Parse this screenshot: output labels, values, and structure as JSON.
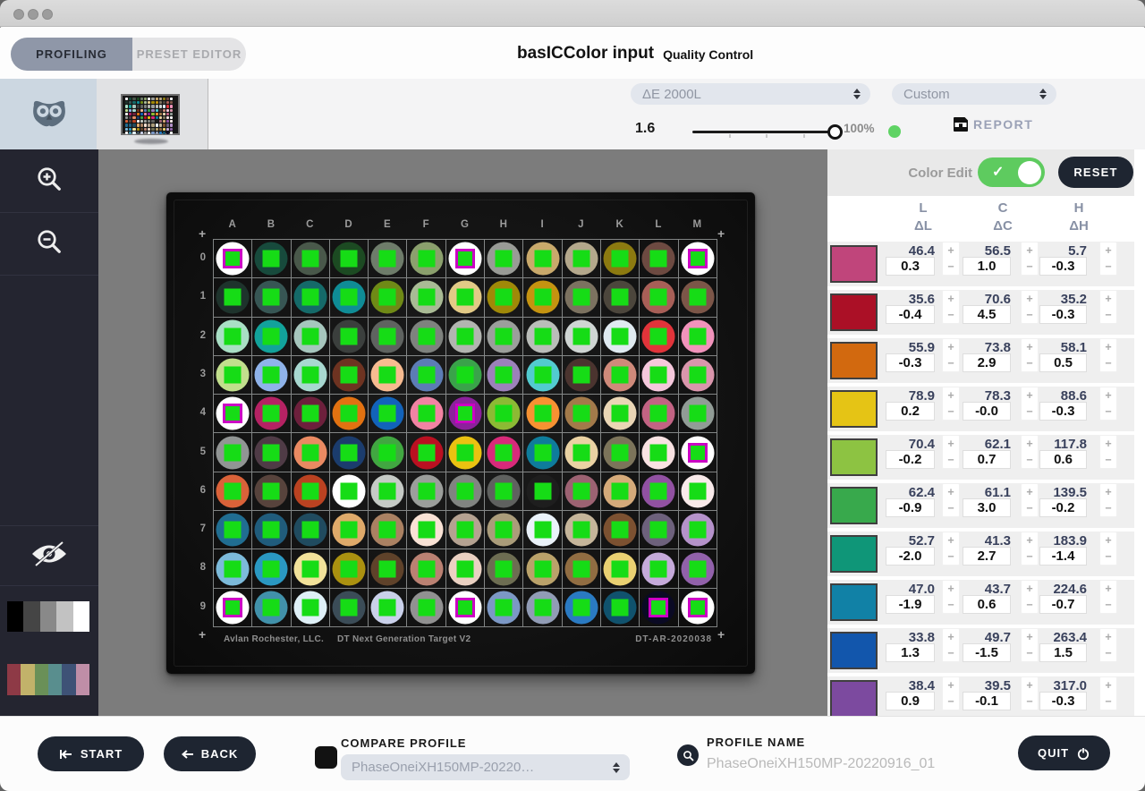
{
  "tabs": {
    "profiling": "PROFILING",
    "preset_editor": "PRESET EDITOR"
  },
  "header": {
    "title": "basICColor input",
    "subtitle": "Quality Control"
  },
  "controls": {
    "delta_e_dropdown": "ΔE 2000L",
    "preset_dropdown": "Custom",
    "tolerance_value": "1.6",
    "slider_percent": "100%",
    "report_label": "REPORT",
    "status_color": "#5fd364"
  },
  "color_edit": {
    "label": "Color Edit",
    "reset_label": "RESET",
    "toggle_on": true
  },
  "table": {
    "headers": [
      {
        "top": "L",
        "bottom": "ΔL"
      },
      {
        "top": "C",
        "bottom": "ΔC"
      },
      {
        "top": "H",
        "bottom": "ΔH"
      }
    ],
    "plus": "+",
    "minus": "−",
    "rows": [
      {
        "swatch": "#c0457b",
        "L": "46.4",
        "dL": "0.3",
        "C": "56.5",
        "dC": "1.0",
        "H": "5.7",
        "dH": "-0.3"
      },
      {
        "swatch": "#ab1026",
        "L": "35.6",
        "dL": "-0.4",
        "C": "70.6",
        "dC": "4.5",
        "H": "35.2",
        "dH": "-0.3"
      },
      {
        "swatch": "#d2690f",
        "L": "55.9",
        "dL": "-0.3",
        "C": "73.8",
        "dC": "2.9",
        "H": "58.1",
        "dH": "0.5"
      },
      {
        "swatch": "#e5c415",
        "L": "78.9",
        "dL": "0.2",
        "C": "78.3",
        "dC": "-0.0",
        "H": "88.6",
        "dH": "-0.3"
      },
      {
        "swatch": "#8dc342",
        "L": "70.4",
        "dL": "-0.2",
        "C": "62.1",
        "dC": "0.7",
        "H": "117.8",
        "dH": "0.6"
      },
      {
        "swatch": "#38a94c",
        "L": "62.4",
        "dL": "-0.9",
        "C": "61.1",
        "dC": "3.0",
        "H": "139.5",
        "dH": "-0.2"
      },
      {
        "swatch": "#0f9678",
        "L": "52.7",
        "dL": "-2.0",
        "C": "41.3",
        "dC": "2.7",
        "H": "183.9",
        "dH": "-1.4"
      },
      {
        "swatch": "#1181a6",
        "L": "47.0",
        "dL": "-1.9",
        "C": "43.7",
        "dC": "0.6",
        "H": "224.6",
        "dH": "-0.7"
      },
      {
        "swatch": "#1256ac",
        "L": "33.8",
        "dL": "1.3",
        "C": "49.7",
        "dC": "-1.5",
        "H": "263.4",
        "dH": "1.5"
      },
      {
        "swatch": "#7c4a9f",
        "L": "38.4",
        "dL": "0.9",
        "C": "39.5",
        "dC": "-0.1",
        "H": "317.0",
        "dH": "-0.3"
      }
    ]
  },
  "target": {
    "cols": [
      "A",
      "B",
      "C",
      "D",
      "E",
      "F",
      "G",
      "H",
      "I",
      "J",
      "K",
      "L",
      "M"
    ],
    "row_labels": [
      "0",
      "1",
      "2",
      "3",
      "4",
      "5",
      "6",
      "7",
      "8",
      "9"
    ],
    "footer_left": "Avlan Rochester, LLC.",
    "footer_mid": "DT Next Generation Target V2",
    "footer_right": "DT-AR-2020038",
    "square_color": "#16dc16",
    "outline_color": "#cb00c4",
    "cells": [
      [
        "#ffffff m",
        "#174a3c",
        "#49584a",
        "#1c4a22",
        "#6e7c6a",
        "#8ba06d",
        "#ffffff m",
        "#999b96",
        "#c9a96b",
        "#b4a88c",
        "#8c7a10",
        "#6d4a41",
        "#ffffff m"
      ],
      [
        "#1e332c",
        "#375654",
        "#156a69",
        "#0f8c96",
        "#6f8a16",
        "#a9bb95",
        "#e2ca86",
        "#a08908",
        "#c59310",
        "#7c7260",
        "#4c463c",
        "#a85f57",
        "#7c5648"
      ],
      [
        "#a9dfc5",
        "#12a29b",
        "#a6c6bd",
        "#3b3f3d",
        "#5f6360",
        "#7e827e",
        "#b2b5b0",
        "#9b9e9b",
        "#babdb9",
        "#cfd5d3",
        "#dfeaf0",
        "#e1343a",
        "#f193bb"
      ],
      [
        "#c2df8d",
        "#8fb3ea",
        "#a8d8d0",
        "#6e3321",
        "#f7bb90",
        "#5c7cb5",
        "#3aa34a",
        "#9c81ba",
        "#52cbd0",
        "#4b342f",
        "#cf8a7a",
        "#f5c8dc",
        "#da96ac"
      ],
      [
        "#ffffff m",
        "#b52263",
        "#6d203c",
        "#e27211",
        "#1263ba",
        "#f283a3",
        "#8c219c m",
        "#8cba34",
        "#f79232",
        "#a37a4a",
        "#ead6b5",
        "#c26383",
        "#919c96"
      ],
      [
        "#919594",
        "#4f3b46",
        "#ea8a62",
        "#1b3c6d",
        "#41a741",
        "#ba1021",
        "#eac211",
        "#d82a7a",
        "#0e7c9c",
        "#ead2a3",
        "#7c745a",
        "#f9e2e2",
        "#ffffff m"
      ],
      [
        "#da6239",
        "#57433c",
        "#ba4221",
        "#ffffff",
        "#c5cac5",
        "#9b9e9b",
        "#818481",
        "#5f615f",
        "#1e1e1e",
        "#9c6272",
        "#d5aa7a",
        "#9151a2",
        "#f9eaea"
      ],
      [
        "#206d91",
        "#205c7c",
        "#204b5f",
        "#dfaa6a",
        "#aa8162",
        "#f9e2d5",
        "#b5a291",
        "#aa9c7a",
        "#eaf2f9",
        "#c5b59a",
        "#7c5131",
        "#6d617c",
        "#b592ca"
      ],
      [
        "#7cbada",
        "#2a98c2",
        "#f2e29a",
        "#aa9110",
        "#5f422a",
        "#ba8172",
        "#ead1c2",
        "#6d6d52",
        "#baa26a",
        "#916d42",
        "#ead172",
        "#c5aada",
        "#9161aa"
      ],
      [
        "#ffffff m",
        "#4191aa",
        "#dff0f7",
        "#3b4c57",
        "#cad1ea",
        "#919191",
        "#ffffff m",
        "#7c98c5",
        "#919cb5",
        "#2a7ac2",
        "#10526d",
        "#0a0a24 m",
        "#ffffff m"
      ]
    ]
  },
  "sidebar": {
    "grayscale": [
      "#000000",
      "#454545",
      "#898989",
      "#c2c2c2",
      "#ffffff"
    ],
    "colors": [
      "#8e3a46",
      "#c2b26a",
      "#6a9058",
      "#598e8e",
      "#3e5276",
      "#bf8ea7"
    ]
  },
  "footer": {
    "start_label": "START",
    "back_label": "BACK",
    "compare_label": "COMPARE PROFILE",
    "compare_value": "PhaseOneiXH150MP-20220…",
    "profile_label": "PROFILE NAME",
    "profile_value": "PhaseOneiXH150MP-20220916_01",
    "quit_label": "QUIT"
  }
}
